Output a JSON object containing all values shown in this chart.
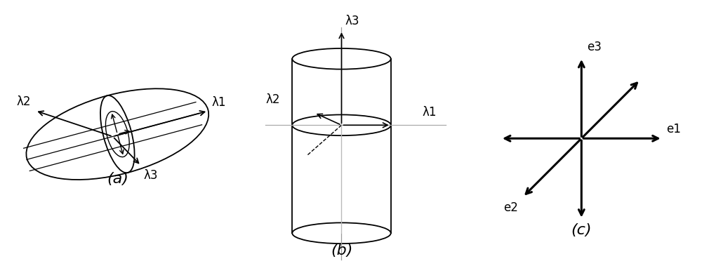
{
  "bg_color": "#ffffff",
  "panel_a_label": "(a)",
  "panel_b_label": "(b)",
  "panel_c_label": "(c)",
  "label_fontsize": 16,
  "annotation_fontsize": 12
}
